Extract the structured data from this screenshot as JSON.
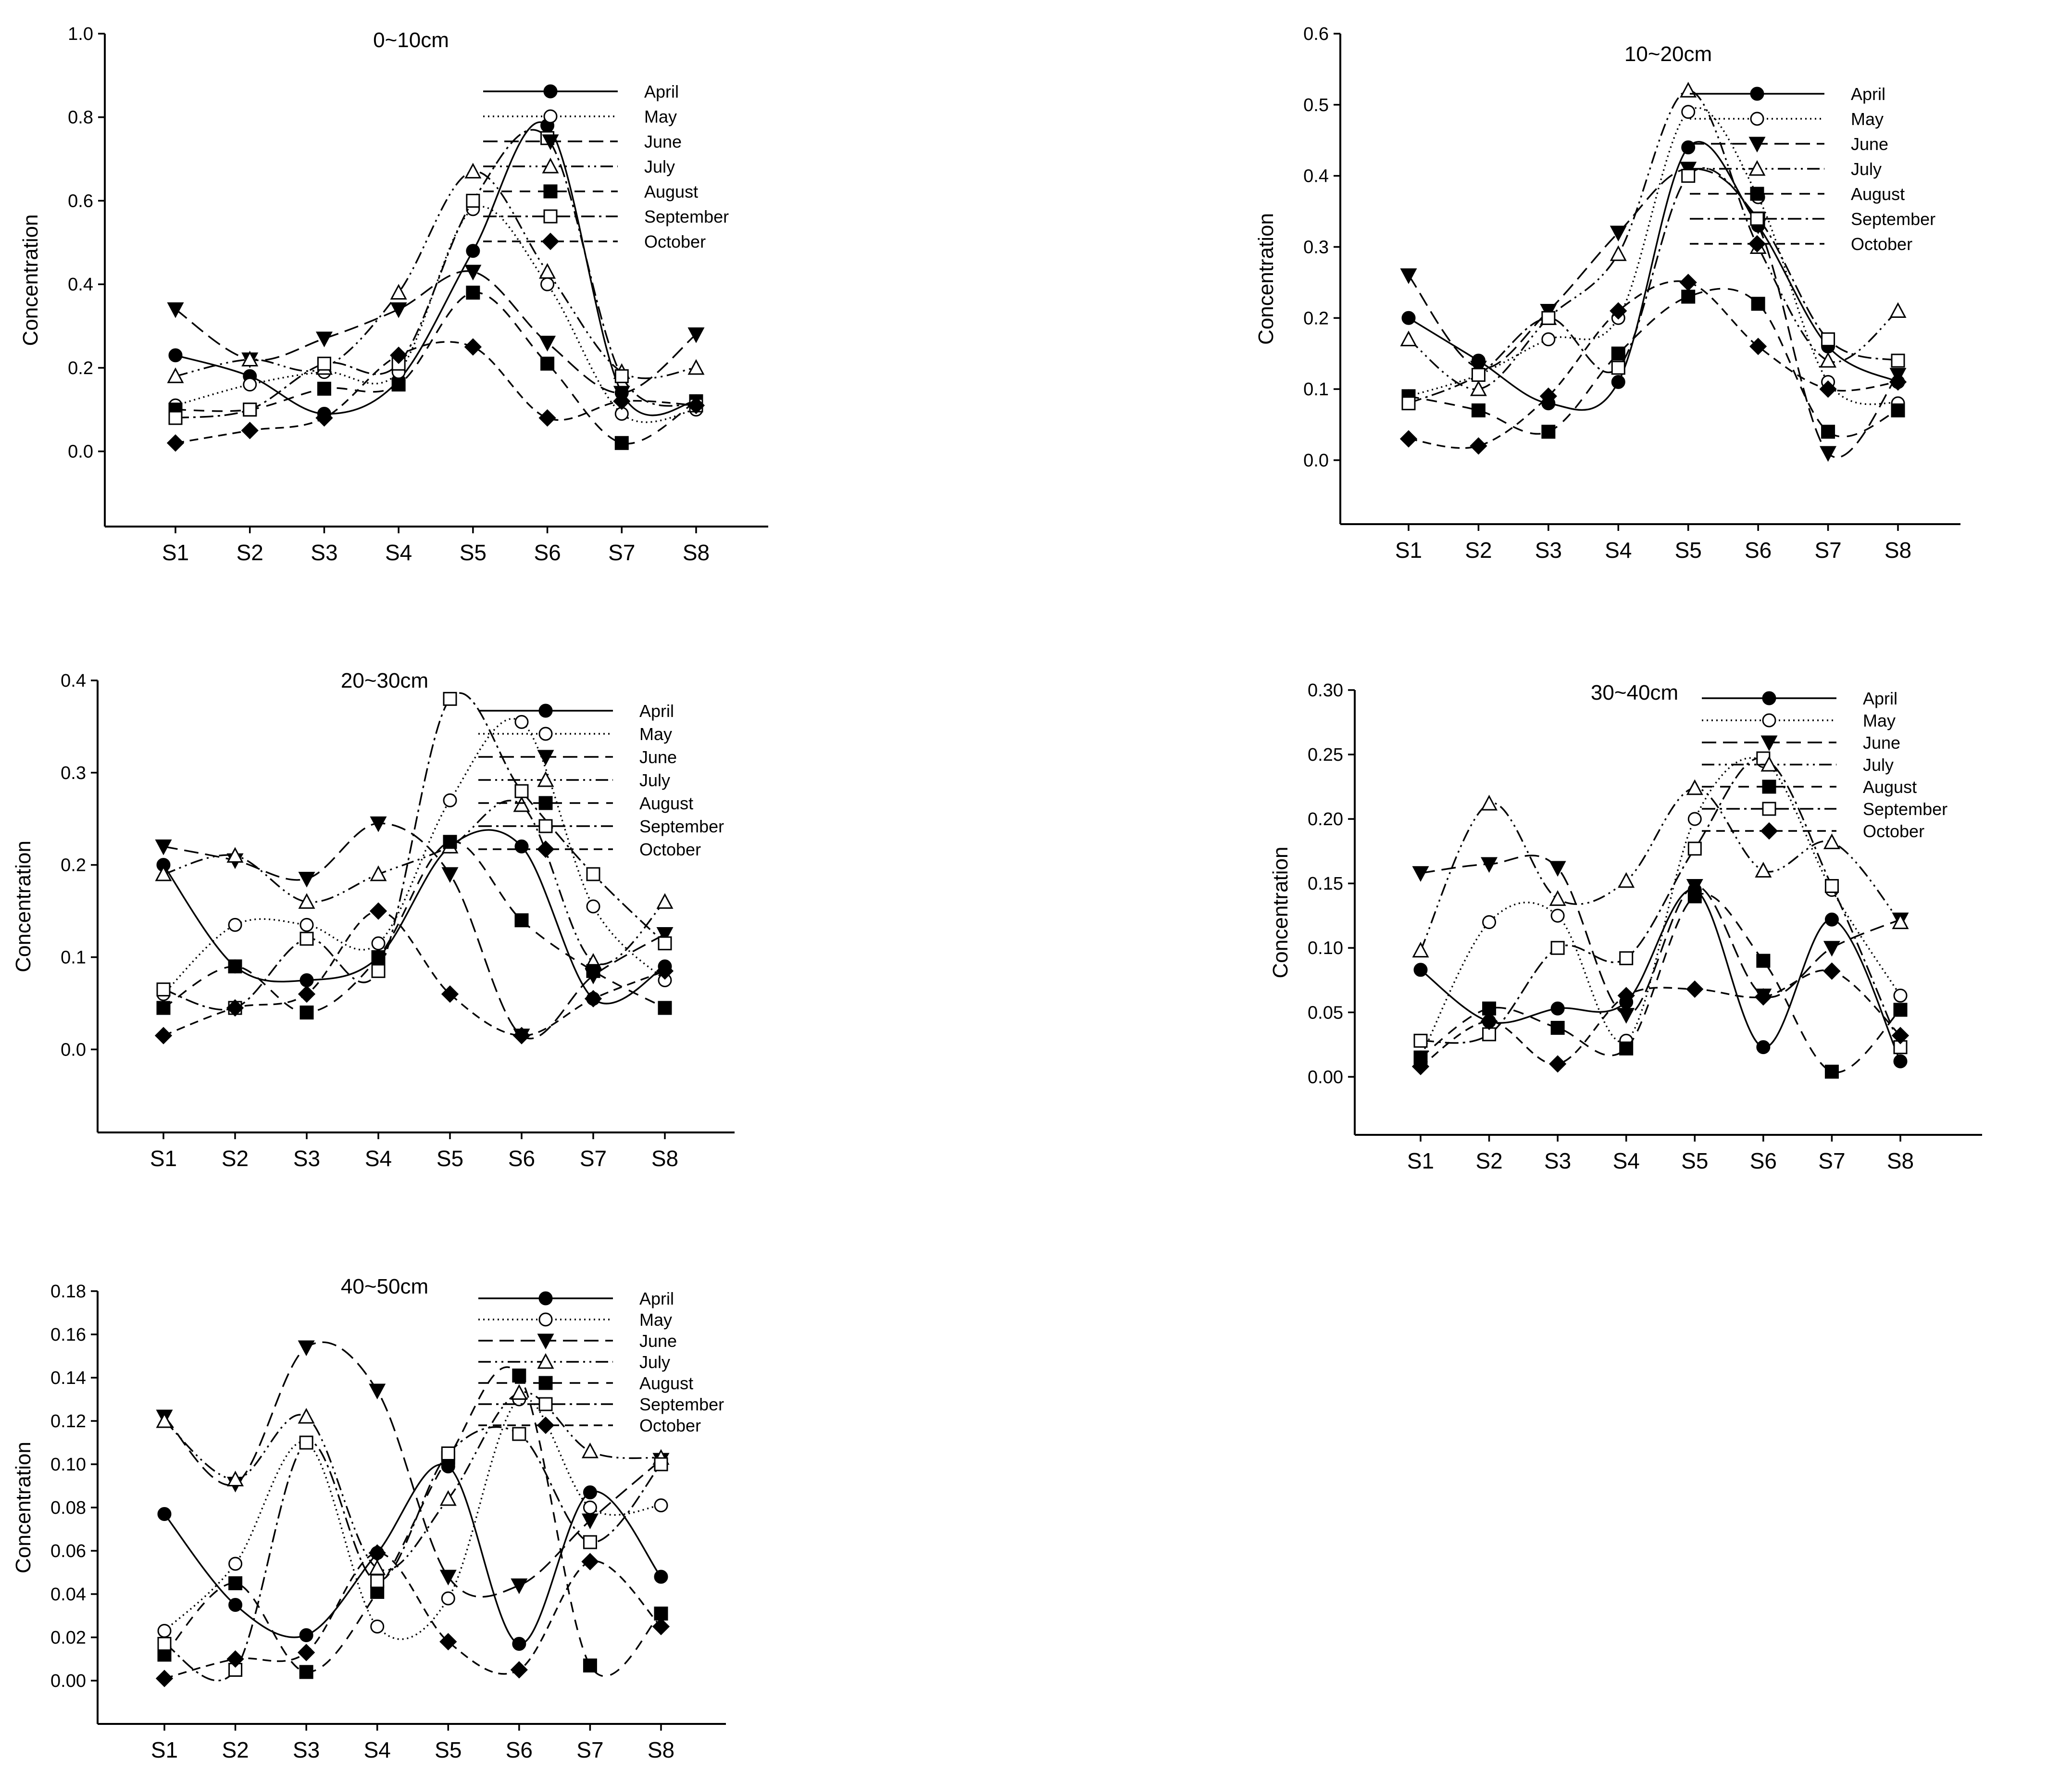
{
  "chart_data": [
    {
      "type": "line",
      "title": "0~10cm",
      "ylabel": "Concentration",
      "xlabel": "",
      "categories": [
        "S1",
        "S2",
        "S3",
        "S4",
        "S5",
        "S6",
        "S7",
        "S8"
      ],
      "ylim": [
        -0.18,
        1.0
      ],
      "yticks": [
        0.0,
        0.2,
        0.4,
        0.6,
        0.8,
        1.0
      ],
      "ytick_labels": [
        "0.0",
        "0.2",
        "0.4",
        "0.6",
        "0.8",
        "1.0"
      ],
      "legend": "top-right",
      "series": [
        {
          "name": "April",
          "values": [
            0.23,
            0.18,
            0.09,
            0.17,
            0.48,
            0.78,
            0.14,
            0.12
          ]
        },
        {
          "name": "May",
          "values": [
            0.11,
            0.16,
            0.19,
            0.19,
            0.58,
            0.4,
            0.09,
            0.1
          ]
        },
        {
          "name": "June",
          "values": [
            0.34,
            0.22,
            0.27,
            0.34,
            0.43,
            0.26,
            0.14,
            0.28
          ]
        },
        {
          "name": "July",
          "values": [
            0.18,
            0.22,
            0.2,
            0.38,
            0.67,
            0.43,
            0.19,
            0.2
          ]
        },
        {
          "name": "August",
          "values": [
            0.1,
            0.1,
            0.15,
            0.16,
            0.38,
            0.21,
            0.02,
            0.12
          ]
        },
        {
          "name": "September",
          "values": [
            0.08,
            0.1,
            0.21,
            0.21,
            0.6,
            0.75,
            0.18,
            0.11
          ]
        },
        {
          "name": "October",
          "values": [
            0.02,
            0.05,
            0.08,
            0.23,
            0.25,
            0.08,
            0.12,
            0.11
          ]
        }
      ]
    },
    {
      "type": "line",
      "title": "10~20cm",
      "ylabel": "Concentration",
      "xlabel": "",
      "categories": [
        "S1",
        "S2",
        "S3",
        "S4",
        "S5",
        "S6",
        "S7",
        "S8"
      ],
      "ylim": [
        -0.09,
        0.6
      ],
      "yticks": [
        0.0,
        0.1,
        0.2,
        0.3,
        0.4,
        0.5,
        0.6
      ],
      "ytick_labels": [
        "0.0",
        "0.1",
        "0.2",
        "0.3",
        "0.4",
        "0.5",
        "0.6"
      ],
      "legend": "top-right",
      "series": [
        {
          "name": "April",
          "values": [
            0.2,
            0.14,
            0.08,
            0.11,
            0.44,
            0.33,
            0.16,
            0.11
          ]
        },
        {
          "name": "May",
          "values": [
            0.09,
            0.12,
            0.17,
            0.2,
            0.49,
            0.37,
            0.11,
            0.08
          ]
        },
        {
          "name": "June",
          "values": [
            0.26,
            0.13,
            0.21,
            0.32,
            0.41,
            0.33,
            0.01,
            0.12
          ]
        },
        {
          "name": "July",
          "values": [
            0.17,
            0.1,
            0.2,
            0.29,
            0.52,
            0.3,
            0.14,
            0.21
          ]
        },
        {
          "name": "August",
          "values": [
            0.09,
            0.07,
            0.04,
            0.15,
            0.23,
            0.22,
            0.04,
            0.07
          ]
        },
        {
          "name": "September",
          "values": [
            0.08,
            0.12,
            0.2,
            0.13,
            0.4,
            0.34,
            0.17,
            0.14
          ]
        },
        {
          "name": "October",
          "values": [
            0.03,
            0.02,
            0.09,
            0.21,
            0.25,
            0.16,
            0.1,
            0.11
          ]
        }
      ]
    },
    {
      "type": "line",
      "title": "20~30cm",
      "ylabel": "Concentration",
      "xlabel": "",
      "categories": [
        "S1",
        "S2",
        "S3",
        "S4",
        "S5",
        "S6",
        "S7",
        "S8"
      ],
      "ylim": [
        -0.09,
        0.4
      ],
      "yticks": [
        0.0,
        0.1,
        0.2,
        0.3,
        0.4
      ],
      "ytick_labels": [
        "0.0",
        "0.1",
        "0.2",
        "0.3",
        "0.4"
      ],
      "legend": "top-right",
      "series": [
        {
          "name": "April",
          "values": [
            0.2,
            0.09,
            0.075,
            0.1,
            0.22,
            0.22,
            0.055,
            0.09
          ]
        },
        {
          "name": "May",
          "values": [
            0.06,
            0.135,
            0.135,
            0.115,
            0.27,
            0.355,
            0.155,
            0.075
          ]
        },
        {
          "name": "June",
          "values": [
            0.22,
            0.205,
            0.185,
            0.245,
            0.19,
            0.015,
            0.08,
            0.125
          ]
        },
        {
          "name": "July",
          "values": [
            0.19,
            0.21,
            0.16,
            0.19,
            0.22,
            0.265,
            0.095,
            0.16
          ]
        },
        {
          "name": "August",
          "values": [
            0.045,
            0.09,
            0.04,
            0.1,
            0.225,
            0.14,
            0.085,
            0.045
          ]
        },
        {
          "name": "September",
          "values": [
            0.065,
            0.045,
            0.12,
            0.085,
            0.38,
            0.28,
            0.19,
            0.115
          ]
        },
        {
          "name": "October",
          "values": [
            0.015,
            0.045,
            0.06,
            0.15,
            0.06,
            0.015,
            0.055,
            0.085
          ]
        }
      ]
    },
    {
      "type": "line",
      "title": "30~40cm",
      "ylabel": "Concentration",
      "xlabel": "",
      "categories": [
        "S1",
        "S2",
        "S3",
        "S4",
        "S5",
        "S6",
        "S7",
        "S8"
      ],
      "ylim": [
        -0.045,
        0.3
      ],
      "yticks": [
        0.0,
        0.05,
        0.1,
        0.15,
        0.2,
        0.25,
        0.3
      ],
      "ytick_labels": [
        "0.00",
        "0.05",
        "0.10",
        "0.15",
        "0.20",
        "0.25",
        "0.30"
      ],
      "legend": "top-right",
      "series": [
        {
          "name": "April",
          "values": [
            0.083,
            0.043,
            0.053,
            0.058,
            0.145,
            0.023,
            0.122,
            0.012
          ]
        },
        {
          "name": "May",
          "values": [
            0.015,
            0.12,
            0.125,
            0.028,
            0.2,
            0.245,
            0.145,
            0.063
          ]
        },
        {
          "name": "June",
          "values": [
            0.158,
            0.165,
            0.162,
            0.048,
            0.148,
            0.063,
            0.1,
            0.122
          ]
        },
        {
          "name": "July",
          "values": [
            0.098,
            0.212,
            0.138,
            0.152,
            0.224,
            0.16,
            0.182,
            0.12
          ]
        },
        {
          "name": "August",
          "values": [
            0.015,
            0.053,
            0.038,
            0.022,
            0.14,
            0.09,
            0.004,
            0.052
          ]
        },
        {
          "name": "September",
          "values": [
            0.028,
            0.033,
            0.1,
            0.092,
            0.177,
            0.247,
            0.148,
            0.023
          ]
        },
        {
          "name": "October",
          "values": [
            0.008,
            0.043,
            0.01,
            0.063,
            0.068,
            0.062,
            0.082,
            0.032
          ]
        }
      ]
    },
    {
      "type": "line",
      "title": "40~50cm",
      "ylabel": "Concentration",
      "xlabel": "",
      "categories": [
        "S1",
        "S2",
        "S3",
        "S4",
        "S5",
        "S6",
        "S7",
        "S8"
      ],
      "ylim": [
        -0.02,
        0.18
      ],
      "yticks": [
        0.0,
        0.02,
        0.04,
        0.06,
        0.08,
        0.1,
        0.12,
        0.14,
        0.16,
        0.18
      ],
      "ytick_labels": [
        "0.00",
        "0.02",
        "0.04",
        "0.06",
        "0.08",
        "0.10",
        "0.12",
        "0.14",
        "0.16",
        "0.18"
      ],
      "legend": "top-right",
      "series": [
        {
          "name": "April",
          "values": [
            0.077,
            0.035,
            0.021,
            0.059,
            0.099,
            0.017,
            0.087,
            0.048
          ]
        },
        {
          "name": "May",
          "values": [
            0.023,
            0.054,
            0.11,
            0.025,
            0.038,
            0.13,
            0.08,
            0.081
          ]
        },
        {
          "name": "June",
          "values": [
            0.122,
            0.091,
            0.154,
            0.134,
            0.048,
            0.044,
            0.074,
            0.102
          ]
        },
        {
          "name": "July",
          "values": [
            0.12,
            0.093,
            0.122,
            0.052,
            0.084,
            0.133,
            0.106,
            0.103
          ]
        },
        {
          "name": "August",
          "values": [
            0.012,
            0.045,
            0.004,
            0.041,
            0.103,
            0.141,
            0.007,
            0.031
          ]
        },
        {
          "name": "September",
          "values": [
            0.017,
            0.005,
            0.11,
            0.046,
            0.105,
            0.114,
            0.064,
            0.1
          ]
        },
        {
          "name": "October",
          "values": [
            0.001,
            0.01,
            0.013,
            0.059,
            0.018,
            0.005,
            0.055,
            0.025
          ]
        }
      ]
    }
  ],
  "series_styles": [
    {
      "name": "April",
      "dash": "",
      "marker": "circle",
      "filled": true
    },
    {
      "name": "May",
      "dash": "3,7",
      "marker": "circle",
      "filled": false
    },
    {
      "name": "June",
      "dash": "30,14",
      "marker": "triangle-down",
      "filled": true
    },
    {
      "name": "July",
      "dash": "26,9,4,9,4,9",
      "marker": "triangle-up",
      "filled": false
    },
    {
      "name": "August",
      "dash": "22,16",
      "marker": "square",
      "filled": true
    },
    {
      "name": "September",
      "dash": "28,9,5,9",
      "marker": "square",
      "filled": false
    },
    {
      "name": "October",
      "dash": "18,12",
      "marker": "diamond",
      "filled": true
    }
  ]
}
